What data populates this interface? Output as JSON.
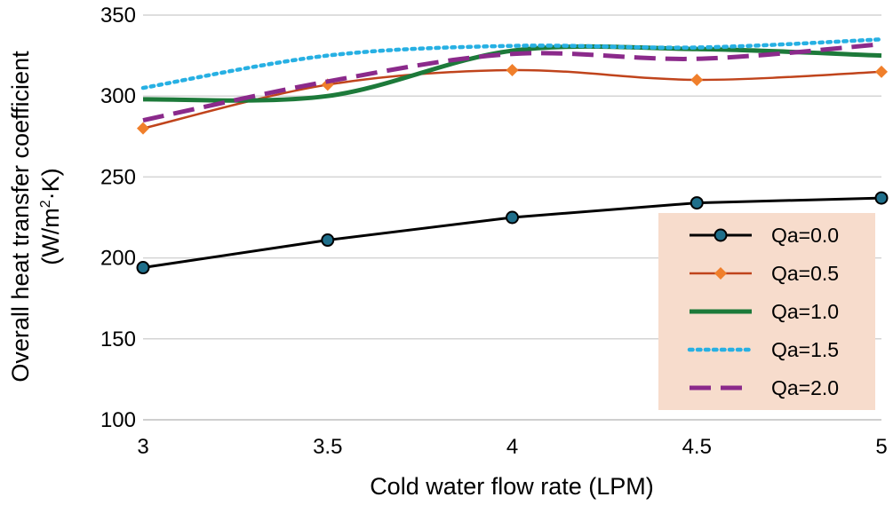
{
  "chart_data": {
    "type": "line",
    "title": "",
    "xlabel": "Cold water flow rate (LPM)",
    "ylabel_line1": "Overall heat transfer coefficient",
    "ylabel_line2_prefix": "(W/m",
    "ylabel_line2_sup": "2",
    "ylabel_line2_suffix": "·K)",
    "xlim": [
      3,
      5
    ],
    "ylim": [
      100,
      350
    ],
    "x_ticks": [
      "3",
      "3.5",
      "4",
      "4.5",
      "5"
    ],
    "y_ticks": [
      "100",
      "150",
      "200",
      "250",
      "300",
      "350"
    ],
    "grid": "horizontal",
    "legend_position": "right",
    "series": [
      {
        "name": "Qa=0.0",
        "color": "#000000",
        "marker_color": "#1f6f8b",
        "marker": "circle",
        "dash": "solid",
        "x": [
          3,
          3.5,
          4,
          4.5,
          5
        ],
        "values": [
          194,
          211,
          225,
          234,
          237
        ]
      },
      {
        "name": "Qa=0.5",
        "color": "#c0441c",
        "marker_color": "#f07f2b",
        "marker": "diamond",
        "dash": "solid",
        "x": [
          3,
          3.5,
          4,
          4.5,
          5
        ],
        "values": [
          280,
          307,
          316,
          310,
          315
        ]
      },
      {
        "name": "Qa=1.0",
        "color": "#1d7a3a",
        "marker": "none",
        "dash": "solid",
        "x": [
          3,
          3.5,
          4,
          4.5,
          5
        ],
        "values": [
          298,
          300,
          328,
          329,
          325
        ]
      },
      {
        "name": "Qa=1.5",
        "color": "#27b0e3",
        "marker": "none",
        "dash": "dotted",
        "x": [
          3,
          3.5,
          4,
          4.5,
          5
        ],
        "values": [
          305,
          325,
          331,
          330,
          335
        ]
      },
      {
        "name": "Qa=2.0",
        "color": "#8b2a8b",
        "marker": "none",
        "dash": "dashed",
        "x": [
          3,
          3.5,
          4,
          4.5,
          5
        ],
        "values": [
          285,
          309,
          326,
          323,
          332
        ]
      }
    ],
    "legend_background": "#f7dccc"
  }
}
